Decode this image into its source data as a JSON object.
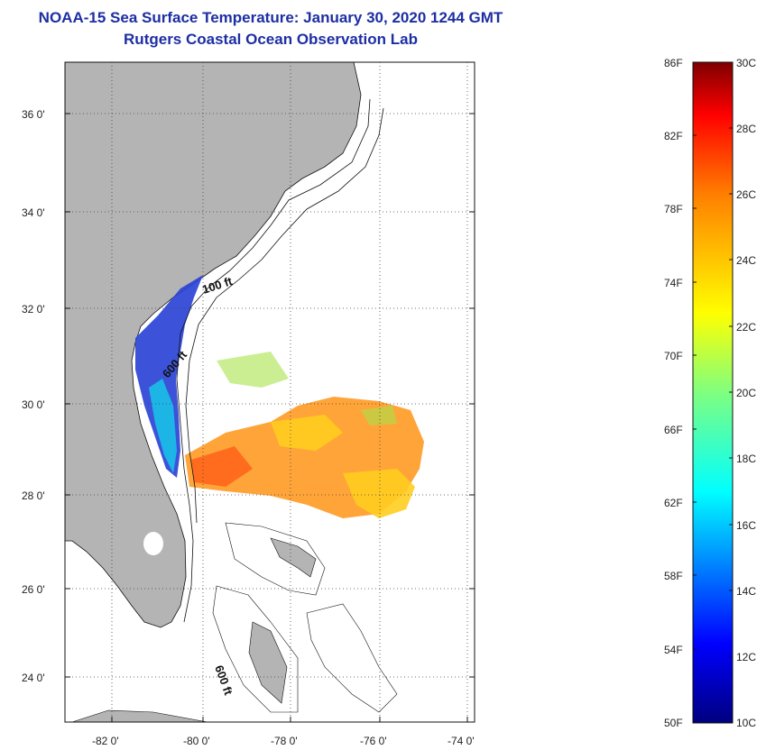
{
  "header": {
    "title": "NOAA-15 Sea Surface Temperature:  January 30, 2020 1244 GMT",
    "subtitle": "Rutgers Coastal Ocean Observation Lab"
  },
  "map": {
    "lat_labels": [
      "36 0'",
      "34 0'",
      "32 0'",
      "30 0'",
      "28 0'",
      "26 0'",
      "24 0'"
    ],
    "lon_labels": [
      "-82 0'",
      "-80 0'",
      "-78 0'",
      "-76 0'",
      "-74 0'"
    ],
    "contour_labels": [
      "100 ft",
      "600 ft",
      "600 ft"
    ],
    "colors": {
      "land": "#b4b4b4",
      "ocean": "#ffffff"
    }
  },
  "colorbar": {
    "f_labels": [
      "86F",
      "82F",
      "78F",
      "74F",
      "70F",
      "66F",
      "62F",
      "58F",
      "54F",
      "50F"
    ],
    "c_labels": [
      "30C",
      "28C",
      "26C",
      "24C",
      "22C",
      "20C",
      "18C",
      "16C",
      "14C",
      "12C",
      "10C"
    ],
    "colors": [
      "#00007f",
      "#0000ff",
      "#007fff",
      "#00ffff",
      "#7fff7f",
      "#ffff00",
      "#ff7f00",
      "#ff0000",
      "#7f0000"
    ]
  }
}
